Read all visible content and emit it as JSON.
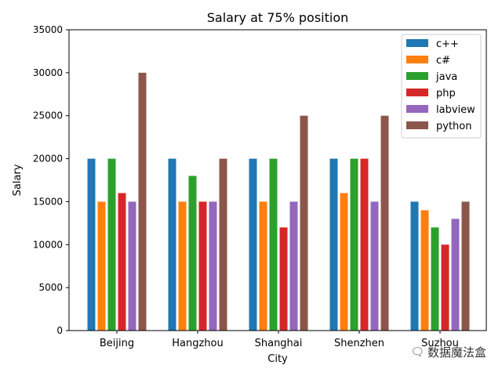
{
  "chart_data": {
    "type": "bar",
    "title": "Salary at 75% position",
    "xlabel": "City",
    "ylabel": "Salary",
    "categories": [
      "Beijing",
      "Hangzhou",
      "Shanghai",
      "Shenzhen",
      "Suzhou"
    ],
    "ylim": [
      0,
      35000
    ],
    "yticks": [
      0,
      5000,
      10000,
      15000,
      20000,
      25000,
      30000,
      35000
    ],
    "grid": false,
    "legend": "top-right",
    "series": [
      {
        "name": "c++",
        "color": "#1f77b4",
        "values": [
          20000,
          20000,
          20000,
          20000,
          15000
        ]
      },
      {
        "name": "c#",
        "color": "#ff7f0e",
        "values": [
          15000,
          15000,
          15000,
          16000,
          14000
        ]
      },
      {
        "name": "java",
        "color": "#2ca02c",
        "values": [
          20000,
          18000,
          20000,
          20000,
          12000
        ]
      },
      {
        "name": "php",
        "color": "#d62728",
        "values": [
          16000,
          15000,
          12000,
          20000,
          10000
        ]
      },
      {
        "name": "labview",
        "color": "#9467bd",
        "values": [
          15000,
          15000,
          15000,
          15000,
          13000
        ]
      },
      {
        "name": "python",
        "color": "#8c564b",
        "values": [
          30000,
          20000,
          25000,
          25000,
          15000
        ]
      }
    ]
  },
  "watermark": {
    "text": "数据魔法盒",
    "icon": "wechat-icon"
  }
}
